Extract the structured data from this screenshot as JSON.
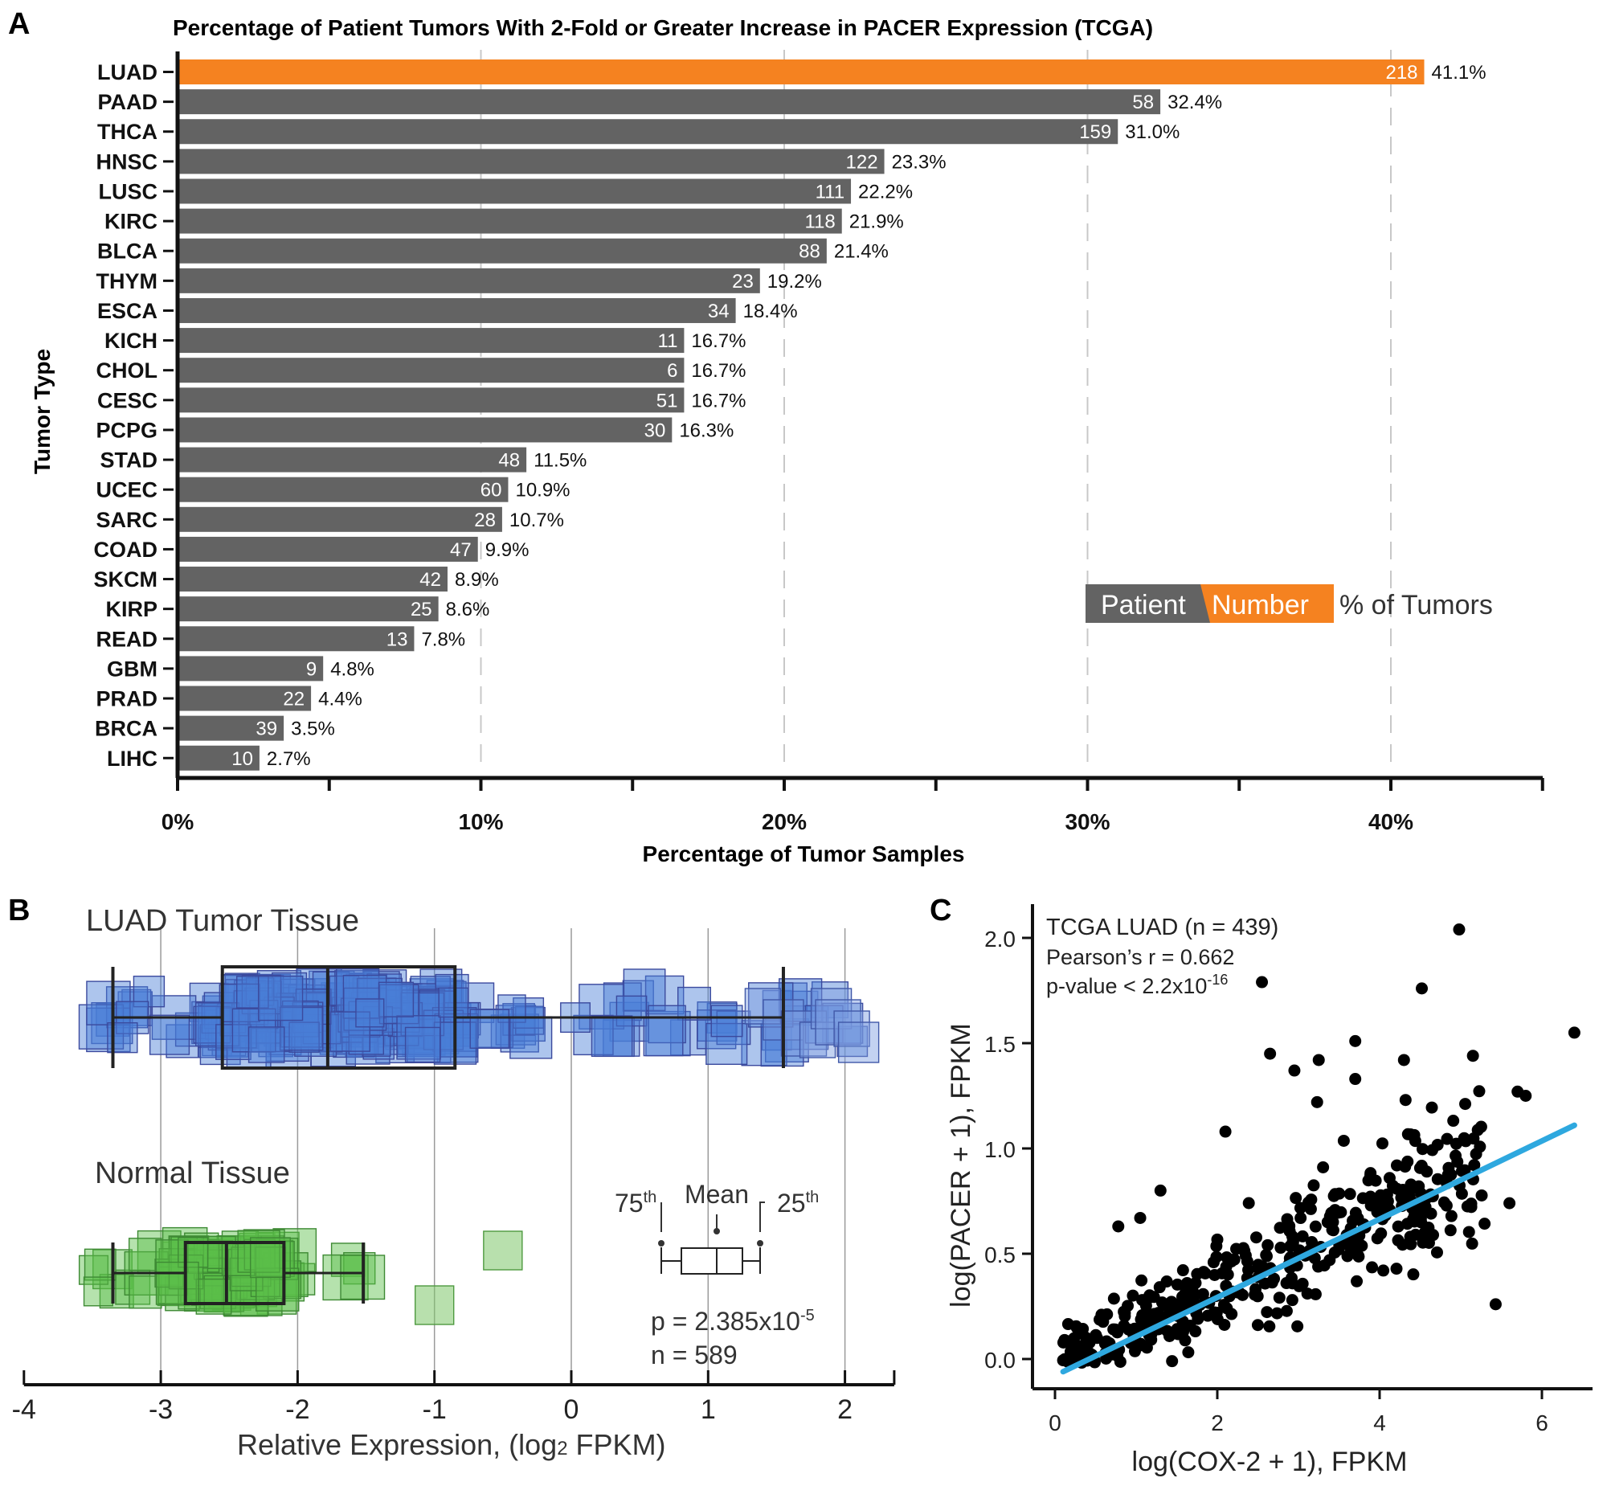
{
  "panels": {
    "a": {
      "letter": "A"
    },
    "b": {
      "letter": "B"
    },
    "c": {
      "letter": "C"
    }
  },
  "chart_data": [
    {
      "id": "A",
      "type": "bar",
      "orientation": "horizontal",
      "title": "Percentage of Patient Tumors With 2-Fold or Greater Increase in PACER Expression (TCGA)",
      "xlabel": "Percentage of Tumor Samples",
      "ylabel": "Tumor Type",
      "xlim": [
        0,
        45
      ],
      "x_ticks": [
        "0%",
        "10%",
        "20%",
        "30%",
        "40%"
      ],
      "grid": "dashed vertical at 10, 20, 30, 40",
      "highlight_color": "#f58220",
      "bar_color": "#636363",
      "legend": {
        "patient_label": "Patient",
        "number_label": "Number",
        "pct_label": "% of Tumors"
      },
      "categories": [
        "LUAD",
        "PAAD",
        "THCA",
        "HNSC",
        "LUSC",
        "KIRC",
        "BLCA",
        "THYM",
        "ESCA",
        "KICH",
        "CHOL",
        "CESC",
        "PCPG",
        "STAD",
        "UCEC",
        "SARC",
        "COAD",
        "SKCM",
        "KIRP",
        "READ",
        "GBM",
        "PRAD",
        "BRCA",
        "LIHC"
      ],
      "values": [
        41.1,
        32.4,
        31.0,
        23.3,
        22.2,
        21.9,
        21.4,
        19.2,
        18.4,
        16.7,
        16.7,
        16.7,
        16.3,
        11.5,
        10.9,
        10.7,
        9.9,
        8.9,
        8.6,
        7.8,
        4.8,
        4.4,
        3.5,
        2.7
      ],
      "value_labels": [
        "41.1%",
        "32.4%",
        "31.0%",
        "23.3%",
        "22.2%",
        "21.9%",
        "21.4%",
        "19.2%",
        "18.4%",
        "16.7%",
        "16.7%",
        "16.7%",
        "16.3%",
        "11.5%",
        "10.9%",
        "10.7%",
        "9.9%",
        "8.9%",
        "8.6%",
        "7.8%",
        "4.8%",
        "4.4%",
        "3.5%",
        "2.7%"
      ],
      "patient_numbers": [
        "218",
        "58",
        "159",
        "122",
        "111",
        "118",
        "88",
        "23",
        "34",
        "11",
        "6",
        "51",
        "30",
        "48",
        "60",
        "28",
        "47",
        "42",
        "25",
        "13",
        "9",
        "22",
        "39",
        "10"
      ]
    },
    {
      "id": "B",
      "type": "scatter",
      "subtype": "jittered squares with box plots",
      "xlabel_main": "Relative Expression, (log",
      "xlabel_sub": "2",
      "xlabel_end": " FPKM)",
      "xlim": [
        -4,
        2.35
      ],
      "x_ticks": [
        "-4",
        "-3",
        "-2",
        "-1",
        "0",
        "1",
        "2"
      ],
      "grid": "vertical at each integer",
      "groups": [
        {
          "name": "LUAD Tumor Tissue",
          "color": "#3b6fc4",
          "whisker_low": -3.35,
          "q1": -2.55,
          "mean": -1.78,
          "q3": -0.85,
          "whisker_high": 1.55,
          "range": [
            -3.5,
            2.2
          ]
        },
        {
          "name": "Normal Tissue",
          "color": "#5cb85c",
          "whisker_low": -3.35,
          "q1": -2.82,
          "mean": -2.52,
          "q3": -2.1,
          "whisker_high": -1.52,
          "range": [
            -3.5,
            -1.45
          ],
          "outliers": [
            -1.0,
            -0.5
          ]
        }
      ],
      "key": {
        "label_75": "75",
        "label_75_sup": "th",
        "label_mean": "Mean",
        "label_25": "25",
        "label_25_sup": "th"
      },
      "stats": {
        "p_prefix": "p = 2.385x10",
        "p_exp": "-5",
        "n_label": "n = 589"
      }
    },
    {
      "id": "C",
      "type": "scatter",
      "xlabel": "log(COX-2 + 1), FPKM",
      "ylabel": "log(PACER + 1), FPKM",
      "xlim": [
        -0.3,
        6.6
      ],
      "ylim": [
        -0.13,
        2.2
      ],
      "x_ticks": [
        "0",
        "2",
        "4",
        "6"
      ],
      "y_ticks": [
        "0.0",
        "0.5",
        "1.0",
        "1.5",
        "2.0"
      ],
      "point_color": "#000000",
      "fit_color": "#2ea8df",
      "fit_line": {
        "x": [
          0.1,
          6.4
        ],
        "y": [
          -0.06,
          1.11
        ]
      },
      "annotation": {
        "line1": "TCGA LUAD (n = 439)",
        "line2": "Pearson’s r = 0.662",
        "line3_prefix": "p-value < 2.2x10",
        "line3_exp": "-16"
      },
      "highlight_points": [
        {
          "x": 4.98,
          "y": 2.04
        },
        {
          "x": 2.55,
          "y": 1.79
        },
        {
          "x": 4.52,
          "y": 1.76
        },
        {
          "x": 6.4,
          "y": 1.55
        },
        {
          "x": 5.15,
          "y": 1.44
        },
        {
          "x": 2.65,
          "y": 1.45
        },
        {
          "x": 3.7,
          "y": 1.51
        },
        {
          "x": 4.3,
          "y": 1.42
        },
        {
          "x": 3.25,
          "y": 1.42
        },
        {
          "x": 3.7,
          "y": 1.33
        },
        {
          "x": 2.95,
          "y": 1.37
        },
        {
          "x": 5.7,
          "y": 1.27
        },
        {
          "x": 5.8,
          "y": 1.25
        },
        {
          "x": 3.23,
          "y": 1.22
        },
        {
          "x": 4.32,
          "y": 1.23
        },
        {
          "x": 5.6,
          "y": 0.74
        },
        {
          "x": 5.43,
          "y": 0.26
        },
        {
          "x": 1.3,
          "y": 0.8
        },
        {
          "x": 0.78,
          "y": 0.63
        },
        {
          "x": 1.05,
          "y": 0.67
        },
        {
          "x": 2.1,
          "y": 1.08
        }
      ],
      "cloud": {
        "count": 418,
        "center_x": 2.1,
        "spread_note": "dense cloud along fit line"
      }
    }
  ]
}
